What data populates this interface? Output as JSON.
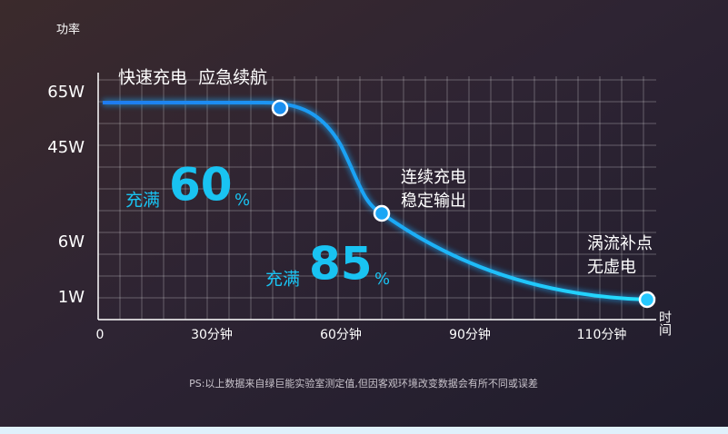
{
  "y_axis_title": "功率",
  "y_labels": [
    "65W",
    "45W",
    "6W",
    "1W"
  ],
  "x_labels": [
    "0",
    "30分钟",
    "60分钟",
    "90分钟",
    "110分钟"
  ],
  "x_axis_title": "时间",
  "headline": "快速充电  应急续航",
  "callouts": [
    {
      "prefix": "充满",
      "value": 60,
      "unit": "%"
    },
    {
      "prefix": "充满",
      "value": 85,
      "unit": "%"
    }
  ],
  "notes": [
    [
      "连续充电",
      "稳定输出"
    ],
    [
      "涡流补点",
      "无虚电"
    ]
  ],
  "footnote": "PS:以上数据来自绿巨能实验室测定值,但因客观环境改变数据会有所不同或误差"
}
